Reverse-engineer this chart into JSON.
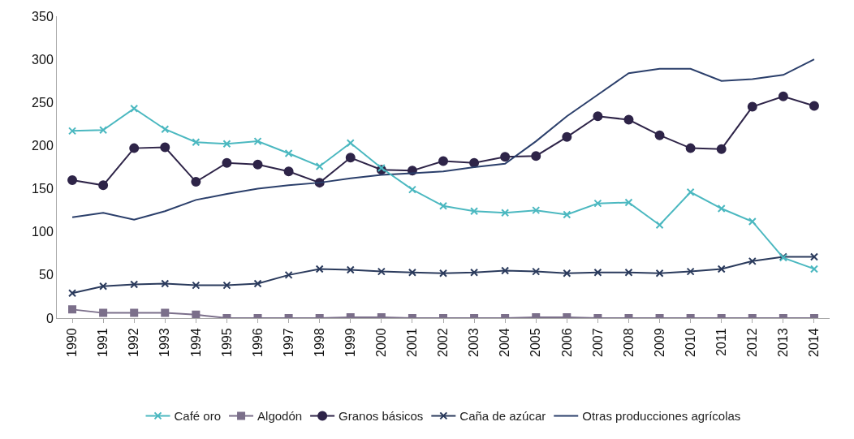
{
  "chart_data": {
    "type": "line",
    "categories": [
      "1990",
      "1991",
      "1992",
      "1993",
      "1994",
      "1995",
      "1996",
      "1997",
      "1998",
      "1999",
      "2000",
      "2001",
      "2002",
      "2003",
      "2004",
      "2005",
      "2006",
      "2007",
      "2008",
      "2009",
      "2010",
      "2011",
      "2012",
      "2013",
      "2014"
    ],
    "series": [
      {
        "name": "Café oro",
        "color": "#4bb8c0",
        "marker": "cross",
        "values": [
          217,
          218,
          243,
          219,
          204,
          202,
          205,
          191,
          176,
          203,
          174,
          149,
          130,
          124,
          122,
          125,
          120,
          133,
          134,
          108,
          146,
          127,
          112,
          70,
          57
        ]
      },
      {
        "name": "Algodón",
        "color": "#7b6f8a",
        "marker": "square",
        "values": [
          10,
          6,
          6,
          6,
          4,
          0,
          0,
          0,
          0,
          1,
          1,
          0,
          0,
          0,
          0,
          1,
          1,
          0,
          0,
          0,
          0,
          0,
          0,
          0,
          0
        ]
      },
      {
        "name": "Granos básicos",
        "color": "#2e2448",
        "marker": "circle",
        "values": [
          160,
          154,
          197,
          198,
          158,
          180,
          178,
          170,
          157,
          186,
          172,
          171,
          182,
          180,
          187,
          188,
          210,
          234,
          230,
          212,
          197,
          196,
          245,
          257,
          246
        ]
      },
      {
        "name": "Caña de azúcar",
        "color": "#2a3a5c",
        "marker": "cross",
        "values": [
          29,
          37,
          39,
          40,
          38,
          38,
          40,
          50,
          57,
          56,
          54,
          53,
          52,
          53,
          55,
          54,
          52,
          53,
          53,
          52,
          54,
          57,
          66,
          71,
          71
        ]
      },
      {
        "name": "Otras producciones agrícolas",
        "color": "#2b3f6b",
        "marker": "none",
        "values": [
          117,
          122,
          114,
          124,
          137,
          144,
          150,
          154,
          157,
          162,
          166,
          168,
          170,
          175,
          179,
          205,
          234,
          259,
          284,
          289,
          289,
          275,
          277,
          282,
          300
        ]
      }
    ],
    "ylim": [
      0,
      350
    ],
    "yticks": [
      0,
      50,
      100,
      150,
      200,
      250,
      300,
      350
    ],
    "grid": false,
    "legend": "bottom"
  }
}
